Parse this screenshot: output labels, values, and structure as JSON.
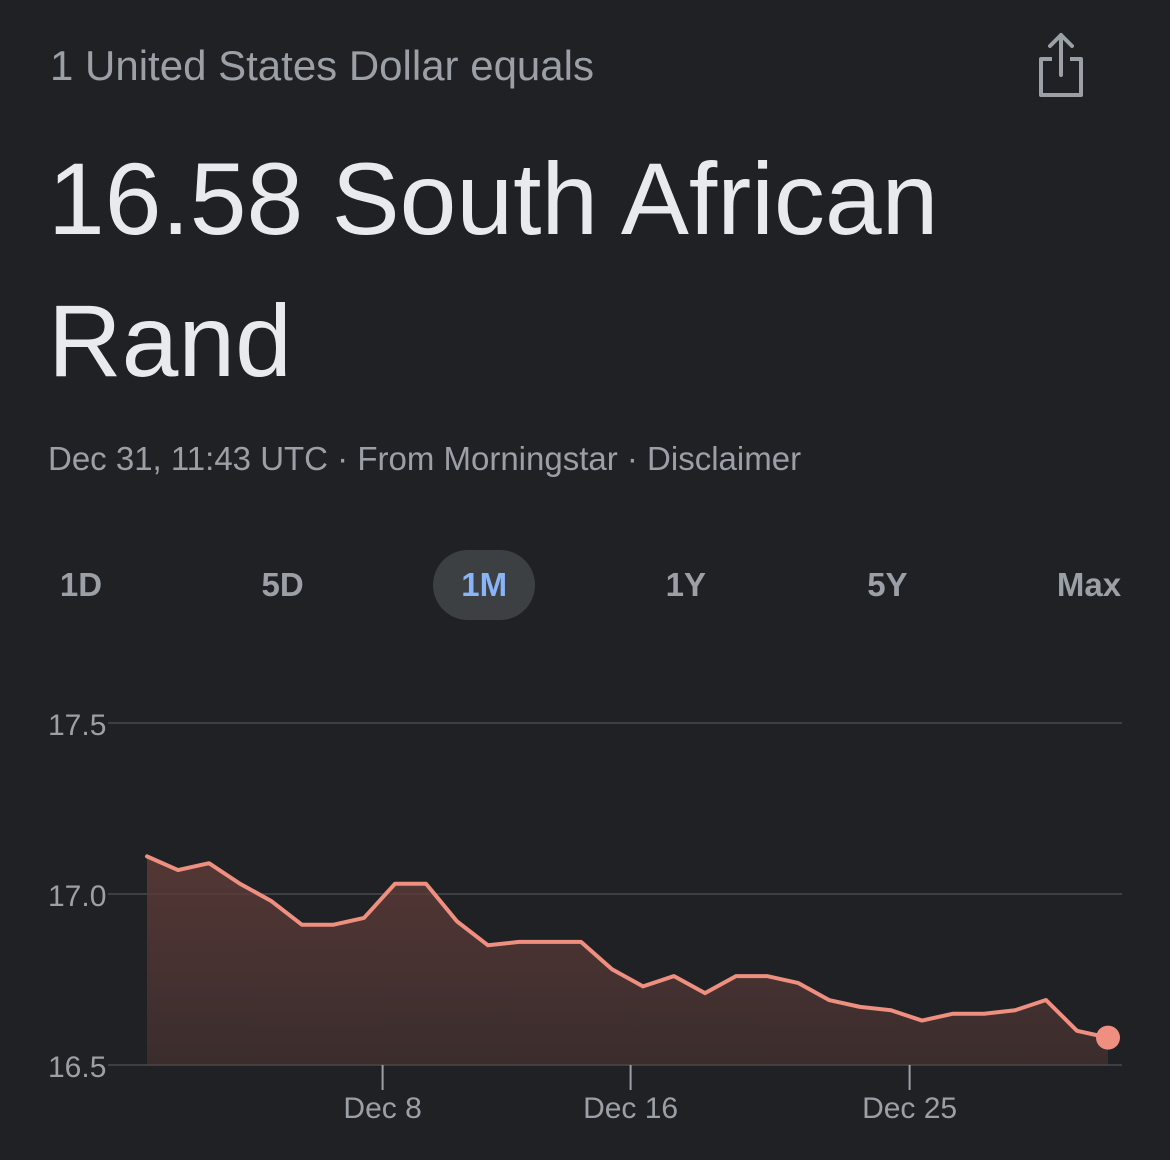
{
  "header": {
    "subtitle": "1 United States Dollar equals",
    "headline": "16.58 South African Rand",
    "meta": "Dec 31, 11:43 UTC · From Morningstar · Disclaimer",
    "share_icon": "share-icon"
  },
  "range_tabs": [
    {
      "label": "1D",
      "active": false
    },
    {
      "label": "5D",
      "active": false
    },
    {
      "label": "1M",
      "active": true
    },
    {
      "label": "1Y",
      "active": false
    },
    {
      "label": "5Y",
      "active": false
    },
    {
      "label": "Max",
      "active": false
    }
  ],
  "colors": {
    "line": "#ee8f80",
    "fill": "#5c3b38",
    "grid": "#3c4043",
    "axis_text": "#9aa0a6",
    "background": "#202124",
    "accent": "#8ab4f8"
  },
  "chart_data": {
    "type": "area",
    "ylim": [
      16.5,
      17.5
    ],
    "yticks": [
      "17.5",
      "17.0",
      "16.5"
    ],
    "xticks": [
      {
        "label": "Dec 8",
        "x": 7.6
      },
      {
        "label": "Dec 16",
        "x": 15.6
      },
      {
        "label": "Dec 25",
        "x": 24.6
      }
    ],
    "x": [
      0,
      1,
      2,
      3,
      4,
      5,
      6,
      7,
      8,
      9,
      10,
      11,
      12,
      13,
      14,
      15,
      16,
      17,
      18,
      19,
      20,
      21,
      22,
      23,
      24,
      25,
      26,
      27,
      28,
      29,
      30,
      31
    ],
    "values": [
      17.11,
      17.07,
      17.09,
      17.03,
      16.98,
      16.91,
      16.91,
      16.93,
      17.03,
      17.03,
      16.92,
      16.85,
      16.86,
      16.86,
      16.86,
      16.78,
      16.73,
      16.76,
      16.71,
      16.76,
      16.76,
      16.74,
      16.69,
      16.67,
      16.66,
      16.63,
      16.65,
      16.65,
      16.66,
      16.69,
      16.6,
      16.58
    ],
    "grid": true
  }
}
